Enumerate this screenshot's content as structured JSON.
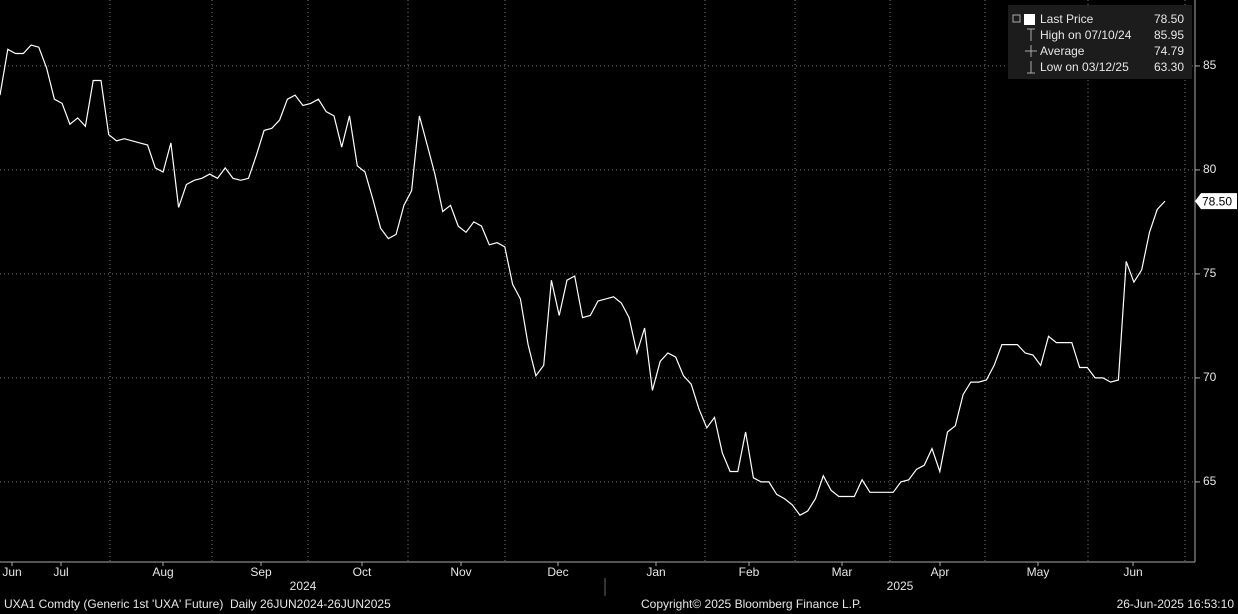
{
  "chart_data": {
    "type": "line",
    "month_labels": [
      "Jun",
      "Jul",
      "Aug",
      "Sep",
      "Oct",
      "Nov",
      "Dec",
      "Jan",
      "Feb",
      "Mar",
      "Apr",
      "May",
      "Jun"
    ],
    "year_labels": [
      "2024",
      "2025"
    ],
    "series": [
      {
        "name": "Last Price",
        "color": "#ffffff",
        "values": [
          83.6,
          85.8,
          85.6,
          85.6,
          86.0,
          85.9,
          84.9,
          83.4,
          83.2,
          82.2,
          82.5,
          82.1,
          84.3,
          84.3,
          81.7,
          81.4,
          81.5,
          81.4,
          81.3,
          81.2,
          80.1,
          79.9,
          81.3,
          78.2,
          79.3,
          79.5,
          79.6,
          79.8,
          79.6,
          80.1,
          79.6,
          79.5,
          79.6,
          80.7,
          81.9,
          82.0,
          82.4,
          83.4,
          83.6,
          83.1,
          83.2,
          83.4,
          82.8,
          82.6,
          81.1,
          82.6,
          80.2,
          79.9,
          78.6,
          77.2,
          76.7,
          76.9,
          78.3,
          79.0,
          82.6,
          81.2,
          79.8,
          78.0,
          78.3,
          77.3,
          77.0,
          77.5,
          77.3,
          76.4,
          76.5,
          76.3,
          74.5,
          73.8,
          71.6,
          70.1,
          70.6,
          74.7,
          73.0,
          74.7,
          74.9,
          72.9,
          73.0,
          73.7,
          73.8,
          73.9,
          73.6,
          72.9,
          71.2,
          72.4,
          69.4,
          70.8,
          71.2,
          71.0,
          70.1,
          69.7,
          68.5,
          67.6,
          68.1,
          66.4,
          65.5,
          65.5,
          67.4,
          65.2,
          65.0,
          65.0,
          64.4,
          64.2,
          63.9,
          63.4,
          63.6,
          64.2,
          65.3,
          64.6,
          64.3,
          64.3,
          64.3,
          65.1,
          64.5,
          64.5,
          64.5,
          64.5,
          65.0,
          65.1,
          65.6,
          65.8,
          66.6,
          65.5,
          67.4,
          67.7,
          69.2,
          69.8,
          69.8,
          69.9,
          70.6,
          71.6,
          71.6,
          71.6,
          71.2,
          71.1,
          70.6,
          72.0,
          71.7,
          71.7,
          71.7,
          70.5,
          70.5,
          70.0,
          70.0,
          69.8,
          69.9,
          75.6,
          74.6,
          75.2,
          77.0,
          78.1,
          78.5
        ]
      }
    ],
    "ylim": [
      61.15,
      88.17
    ],
    "yticks": [
      65,
      70,
      75,
      80,
      85
    ],
    "grid": true,
    "legend_items": [
      {
        "label": "Last Price",
        "value": "78.50"
      },
      {
        "label": "High on 07/10/24",
        "value": "85.95"
      },
      {
        "label": "Average",
        "value": "74.79"
      },
      {
        "label": "Low on 03/12/25",
        "value": "63.30"
      }
    ],
    "footer": {
      "security": "UXA1 Comdty (Generic 1st 'UXA' Future)  Daily 26JUN2024-26JUN2025",
      "copyright": "Copyright© 2025 Bloomberg Finance L.P.",
      "timestamp": "26-Jun-2025 16:53:10"
    }
  }
}
